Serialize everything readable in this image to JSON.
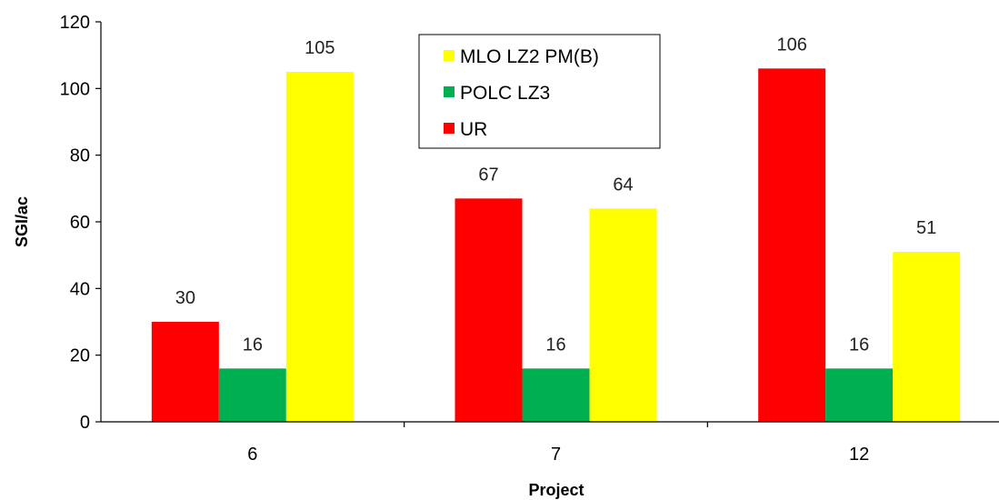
{
  "chart_data": {
    "type": "bar",
    "title": "",
    "xlabel": "Project",
    "ylabel": "SGI/ac",
    "ylim": [
      0,
      120
    ],
    "yticks": [
      0,
      20,
      40,
      60,
      80,
      100,
      120
    ],
    "grid": false,
    "legend_position": "top-center",
    "categories": [
      "6",
      "7",
      "12"
    ],
    "series": [
      {
        "name": "UR",
        "color": "#ff0000",
        "values": [
          30,
          67,
          106
        ]
      },
      {
        "name": "POLC LZ3",
        "color": "#00b050",
        "values": [
          16,
          16,
          16
        ]
      },
      {
        "name": "MLO LZ2 PM(B)",
        "color": "#ffff00",
        "values": [
          105,
          64,
          51
        ]
      }
    ],
    "legend_order": [
      "MLO LZ2 PM(B)",
      "POLC LZ3",
      "UR"
    ]
  }
}
